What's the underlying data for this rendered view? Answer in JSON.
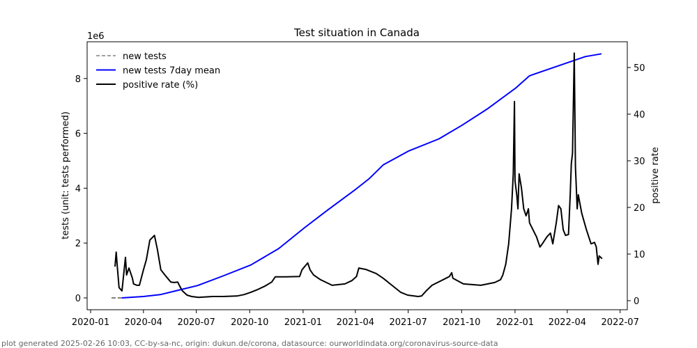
{
  "chart_data": {
    "type": "line",
    "title": "Test situation in Canada",
    "x_origin": "2020-01-01",
    "x_unit": "days since x_origin",
    "xlim_days": [
      -5,
      936
    ],
    "x_ticks": [
      {
        "day": 0,
        "label": "2020-01"
      },
      {
        "day": 91,
        "label": "2020-04"
      },
      {
        "day": 182,
        "label": "2020-07"
      },
      {
        "day": 274,
        "label": "2020-10"
      },
      {
        "day": 366,
        "label": "2021-01"
      },
      {
        "day": 456,
        "label": "2021-04"
      },
      {
        "day": 547,
        "label": "2021-07"
      },
      {
        "day": 639,
        "label": "2021-10"
      },
      {
        "day": 731,
        "label": "2022-01"
      },
      {
        "day": 821,
        "label": "2022-04"
      },
      {
        "day": 912,
        "label": "2022-07"
      }
    ],
    "ylabel": "tests (unit: tests performed)",
    "y_offset_label": "1e6",
    "ylim": [
      -0.4,
      9.3
    ],
    "y_ticks": [
      {
        "v": 0,
        "label": "0"
      },
      {
        "v": 2,
        "label": "2"
      },
      {
        "v": 4,
        "label": "4"
      },
      {
        "v": 6,
        "label": "6"
      },
      {
        "v": 8,
        "label": "8"
      }
    ],
    "y2label": "positive rate",
    "y2lim": [
      -2,
      55
    ],
    "y2_ticks": [
      {
        "v": 0,
        "label": "0"
      },
      {
        "v": 10,
        "label": "10"
      },
      {
        "v": 20,
        "label": "20"
      },
      {
        "v": 30,
        "label": "30"
      },
      {
        "v": 40,
        "label": "40"
      },
      {
        "v": 50,
        "label": "50"
      }
    ],
    "legend_position": "top-left",
    "series": [
      {
        "name": "new tests",
        "axis": "left",
        "color": "#808080",
        "style": "dashed",
        "points": [
          [
            36,
            0
          ],
          [
            54,
            0
          ]
        ]
      },
      {
        "name": "new tests 7day mean",
        "axis": "left",
        "color": "#0000ff",
        "style": "solid",
        "points": [
          [
            54,
            0
          ],
          [
            91,
            0.05
          ],
          [
            120,
            0.12
          ],
          [
            184,
            0.45
          ],
          [
            228,
            0.8
          ],
          [
            276,
            1.2
          ],
          [
            324,
            1.8
          ],
          [
            368,
            2.55
          ],
          [
            408,
            3.2
          ],
          [
            456,
            3.95
          ],
          [
            480,
            4.35
          ],
          [
            504,
            4.85
          ],
          [
            547,
            5.35
          ],
          [
            600,
            5.8
          ],
          [
            640,
            6.3
          ],
          [
            684,
            6.9
          ],
          [
            732,
            7.65
          ],
          [
            756,
            8.1
          ],
          [
            804,
            8.45
          ],
          [
            852,
            8.8
          ],
          [
            880,
            8.9
          ]
        ]
      },
      {
        "name": "positive rate (%)",
        "axis": "right",
        "color": "#000000",
        "style": "solid",
        "points": [
          [
            42,
            7.3
          ],
          [
            44,
            10.4
          ],
          [
            46,
            7.3
          ],
          [
            49,
            2.8
          ],
          [
            54,
            2.1
          ],
          [
            60,
            9.3
          ],
          [
            62,
            5.5
          ],
          [
            66,
            7.0
          ],
          [
            72,
            4.8
          ],
          [
            74,
            3.6
          ],
          [
            80,
            3.3
          ],
          [
            84,
            3.3
          ],
          [
            91,
            6.6
          ],
          [
            96,
            8.8
          ],
          [
            102,
            13.0
          ],
          [
            110,
            14.0
          ],
          [
            115,
            11.0
          ],
          [
            121,
            6.6
          ],
          [
            130,
            5.2
          ],
          [
            138,
            4.0
          ],
          [
            144,
            3.9
          ],
          [
            150,
            4.0
          ],
          [
            154,
            3.0
          ],
          [
            158,
            2.1
          ],
          [
            166,
            1.2
          ],
          [
            174,
            0.9
          ],
          [
            186,
            0.7
          ],
          [
            210,
            0.9
          ],
          [
            228,
            0.9
          ],
          [
            252,
            1.0
          ],
          [
            264,
            1.3
          ],
          [
            276,
            1.8
          ],
          [
            288,
            2.4
          ],
          [
            300,
            3.1
          ],
          [
            312,
            4.0
          ],
          [
            318,
            5.1
          ],
          [
            336,
            5.1
          ],
          [
            360,
            5.2
          ],
          [
            364,
            6.6
          ],
          [
            374,
            8.1
          ],
          [
            378,
            6.6
          ],
          [
            384,
            5.5
          ],
          [
            396,
            4.5
          ],
          [
            416,
            3.3
          ],
          [
            438,
            3.6
          ],
          [
            450,
            4.3
          ],
          [
            458,
            5.2
          ],
          [
            462,
            7.0
          ],
          [
            474,
            6.7
          ],
          [
            492,
            5.8
          ],
          [
            504,
            4.8
          ],
          [
            516,
            3.6
          ],
          [
            534,
            1.8
          ],
          [
            546,
            1.2
          ],
          [
            564,
            0.9
          ],
          [
            570,
            1.0
          ],
          [
            578,
            2.1
          ],
          [
            588,
            3.3
          ],
          [
            612,
            4.8
          ],
          [
            618,
            5.2
          ],
          [
            622,
            6.0
          ],
          [
            624,
            4.8
          ],
          [
            642,
            3.6
          ],
          [
            672,
            3.3
          ],
          [
            696,
            3.9
          ],
          [
            706,
            4.5
          ],
          [
            710,
            5.5
          ],
          [
            715,
            7.8
          ],
          [
            720,
            12.2
          ],
          [
            725,
            19.7
          ],
          [
            728,
            27.2
          ],
          [
            730,
            42.7
          ],
          [
            731,
            25.7
          ],
          [
            734,
            22.7
          ],
          [
            736,
            19.7
          ],
          [
            738,
            27.2
          ],
          [
            742,
            24.2
          ],
          [
            746,
            19.7
          ],
          [
            750,
            18.2
          ],
          [
            754,
            19.7
          ],
          [
            756,
            16.7
          ],
          [
            768,
            13.7
          ],
          [
            774,
            11.5
          ],
          [
            778,
            12.2
          ],
          [
            786,
            13.7
          ],
          [
            792,
            14.5
          ],
          [
            796,
            12.2
          ],
          [
            802,
            16.7
          ],
          [
            806,
            20.4
          ],
          [
            810,
            19.7
          ],
          [
            814,
            15.2
          ],
          [
            818,
            14.0
          ],
          [
            823,
            14.2
          ],
          [
            826,
            22.7
          ],
          [
            828,
            29.4
          ],
          [
            830,
            31.6
          ],
          [
            833,
            53.1
          ],
          [
            835,
            28.7
          ],
          [
            838,
            19.7
          ],
          [
            840,
            22.7
          ],
          [
            846,
            18.7
          ],
          [
            854,
            15.2
          ],
          [
            862,
            12.2
          ],
          [
            868,
            12.5
          ],
          [
            871,
            11.5
          ],
          [
            874,
            7.8
          ],
          [
            876,
            9.6
          ],
          [
            881,
            9.0
          ]
        ]
      }
    ]
  },
  "footer": "plot generated 2025-02-26 10:03, CC-by-sa-nc, origin: dukun.de/corona, datasource: ourworldindata.org/coronavirus-source-data"
}
